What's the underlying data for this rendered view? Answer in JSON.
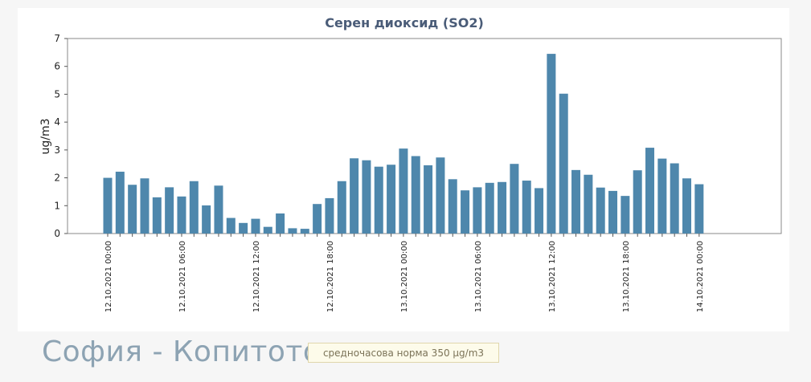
{
  "chart_data": {
    "type": "bar",
    "title": "Серен диоксид (SO2)",
    "ylabel": "ug/m3",
    "ylim": [
      0,
      7
    ],
    "yticks": [
      "0",
      "1",
      "2",
      "3",
      "4",
      "5",
      "6",
      "7"
    ],
    "x_tick_labels": [
      "12.10.2021 00:00",
      "12.10.2021 06:00",
      "12.10.2021 12:00",
      "12.10.2021 18:00",
      "13.10.2021 00:00",
      "13.10.2021 06:00",
      "13.10.2021 12:00",
      "13.10.2021 18:00",
      "14.10.2021 00:00"
    ],
    "values": [
      2.0,
      2.22,
      1.75,
      1.98,
      1.3,
      1.66,
      1.33,
      1.88,
      1.01,
      1.72,
      0.56,
      0.38,
      0.53,
      0.24,
      0.72,
      0.19,
      0.17,
      1.06,
      1.27,
      1.88,
      2.7,
      2.63,
      2.4,
      2.47,
      3.05,
      2.78,
      2.45,
      2.73,
      1.95,
      1.55,
      1.66,
      1.82,
      1.85,
      2.5,
      1.9,
      1.63,
      6.45,
      5.02,
      2.28,
      2.11,
      1.65,
      1.53,
      1.35,
      2.27,
      3.08,
      2.69,
      2.52,
      1.98,
      1.77
    ],
    "grid": false,
    "bar_color": "#4e87ac"
  },
  "footer": {
    "station": "София - Копитото",
    "norm": "средночасова норма 350 µg/m3"
  }
}
